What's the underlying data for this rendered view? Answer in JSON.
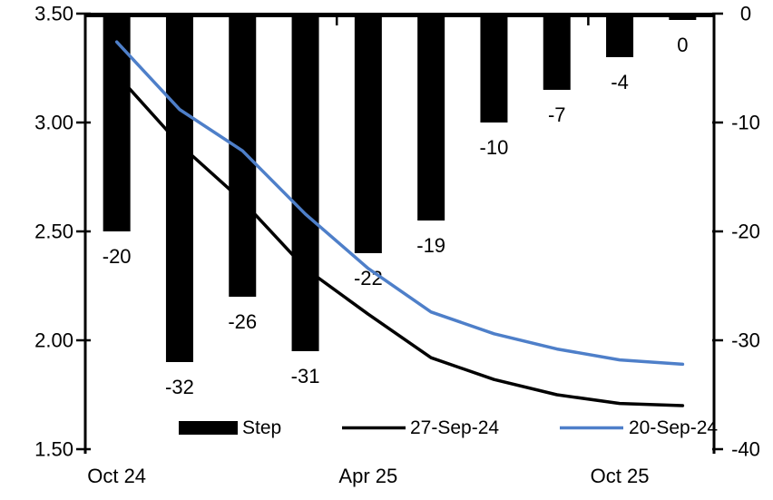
{
  "chart_data": {
    "type": "combo-bar-line",
    "n_categories": 10,
    "x_axis": {
      "tick_labels": [
        {
          "label": "Oct 24",
          "category_index": 0
        },
        {
          "label": "Apr 25",
          "category_index": 4
        },
        {
          "label": "Oct 25",
          "category_index": 8
        }
      ],
      "boundary_tick_indices": [
        4,
        8
      ]
    },
    "left_axis": {
      "min": 1.5,
      "max": 3.5,
      "tick_labels": [
        "3.50",
        "3.00",
        "2.50",
        "2.00",
        "1.50"
      ],
      "tick_values": [
        3.5,
        3.0,
        2.5,
        2.0,
        1.5
      ]
    },
    "right_axis": {
      "min": -40,
      "max": 0,
      "tick_labels": [
        "0",
        "-10",
        "-20",
        "-30",
        "-40"
      ],
      "tick_values": [
        0,
        -10,
        -20,
        -30,
        -40
      ]
    },
    "bar_series": {
      "name": "Step",
      "axis": "right",
      "color": "#000000",
      "values": [
        -20,
        -32,
        -26,
        -31,
        -22,
        -19,
        -10,
        -7,
        -4,
        0
      ],
      "data_labels": [
        "-20",
        "-32",
        "-26",
        "-31",
        "-22",
        "-19",
        "-10",
        "-7",
        "-4",
        "0"
      ]
    },
    "line_series": [
      {
        "name": "27-Sep-24",
        "axis": "left",
        "color": "#000000",
        "values": [
          3.22,
          2.9,
          2.64,
          2.33,
          2.12,
          1.92,
          1.82,
          1.75,
          1.71,
          1.7
        ]
      },
      {
        "name": "20-Sep-24",
        "axis": "left",
        "color": "#4e7fc9",
        "values": [
          3.37,
          3.06,
          2.87,
          2.58,
          2.33,
          2.13,
          2.03,
          1.96,
          1.91,
          1.89
        ]
      }
    ],
    "legend": [
      {
        "label": "Step",
        "swatch": "bar",
        "color": "#000000"
      },
      {
        "label": "27-Sep-24",
        "swatch": "line",
        "color": "#000000"
      },
      {
        "label": "20-Sep-24",
        "swatch": "line",
        "color": "#4e7fc9"
      }
    ],
    "legend_position": "bottom-inside",
    "grid": false,
    "title": "",
    "xlabel": "",
    "ylabel": ""
  }
}
